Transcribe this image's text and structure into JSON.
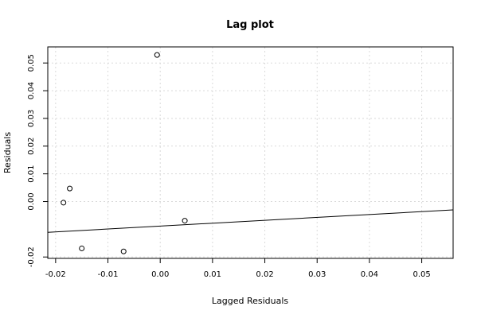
{
  "chart_data": {
    "type": "scatter",
    "title": "Lag plot",
    "xlabel": "Lagged Residuals",
    "ylabel": "Residuals",
    "xlim": [
      -0.0215,
      0.056
    ],
    "ylim": [
      -0.0205,
      0.0558
    ],
    "x_ticks": [
      -0.02,
      -0.01,
      0.0,
      0.01,
      0.02,
      0.03,
      0.04,
      0.05
    ],
    "x_tick_labels": [
      "-0.02",
      "-0.01",
      "0.00",
      "0.01",
      "0.02",
      "0.03",
      "0.04",
      "0.05"
    ],
    "y_ticks": [
      -0.02,
      0.0,
      0.01,
      0.02,
      0.03,
      0.04,
      0.05
    ],
    "y_tick_labels": [
      "-0.02",
      "0.00",
      "0.01",
      "0.02",
      "0.03",
      "0.04",
      "0.05"
    ],
    "grid": true,
    "points": [
      {
        "x": -0.0006,
        "y": 0.0529
      },
      {
        "x": -0.0173,
        "y": 0.0047
      },
      {
        "x": -0.0185,
        "y": -0.0004
      },
      {
        "x": 0.0047,
        "y": -0.0069
      },
      {
        "x": -0.015,
        "y": -0.0169
      },
      {
        "x": -0.007,
        "y": -0.018
      }
    ],
    "fit_line": {
      "x": [
        -0.0215,
        0.056
      ],
      "y": [
        -0.0111,
        -0.003
      ]
    }
  }
}
